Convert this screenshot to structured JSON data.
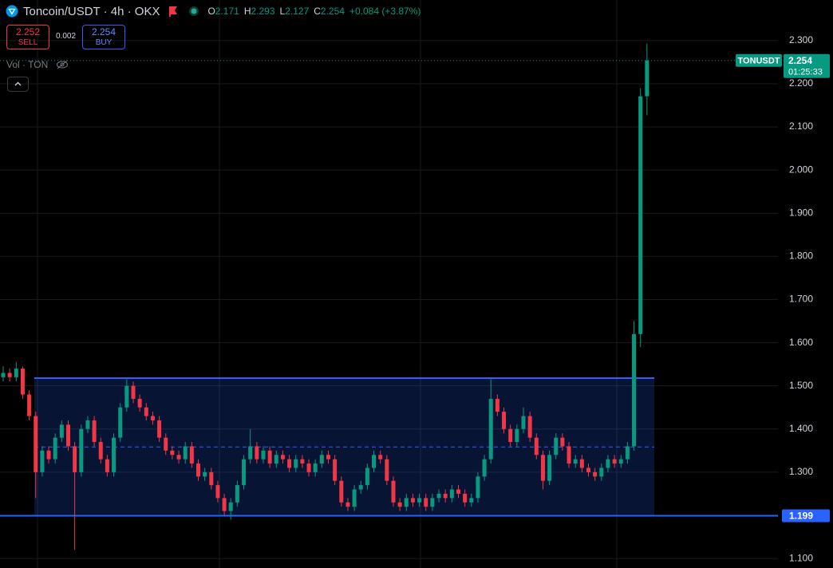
{
  "header": {
    "title": "Toncoin/USDT · 4h · OKX",
    "ohlc": [
      {
        "label": "O",
        "value": 2.171
      },
      {
        "label": "H",
        "value": 2.293
      },
      {
        "label": "L",
        "value": 2.127
      },
      {
        "label": "C",
        "value": 2.254
      }
    ],
    "change": "+0.084 (+3.87%)",
    "sell": {
      "price": 2.252,
      "label": "SELL"
    },
    "spread": 0.002,
    "buy": {
      "price": 2.254,
      "label": "BUY"
    },
    "volume_label": "Vol · TON"
  },
  "chart_data": {
    "type": "candlestick",
    "up_color": "#089981",
    "down_color": "#f23645",
    "grid": true,
    "ylim": [
      1.078,
      2.394
    ],
    "yticks": [
      {
        "value": 1.1,
        "label": "1.100"
      },
      {
        "value": 1.3,
        "label": "1.300"
      },
      {
        "value": 1.4,
        "label": "1.400"
      },
      {
        "value": 1.5,
        "label": "1.500"
      },
      {
        "value": 1.6,
        "label": "1.600"
      },
      {
        "value": 1.7,
        "label": "1.700"
      },
      {
        "value": 1.8,
        "label": "1.800"
      },
      {
        "value": 1.9,
        "label": "1.900"
      },
      {
        "value": 2.0,
        "label": "2.000"
      },
      {
        "value": 2.1,
        "label": "2.100"
      },
      {
        "value": 2.2,
        "label": "2.200"
      },
      {
        "value": 2.3,
        "label": "2.300"
      }
    ],
    "open": [
      1.52,
      1.53,
      1.52,
      1.54,
      1.48,
      1.43,
      1.3,
      1.35,
      1.33,
      1.38,
      1.41,
      1.36,
      1.3,
      1.4,
      1.42,
      1.37,
      1.33,
      1.3,
      1.38,
      1.45,
      1.5,
      1.47,
      1.45,
      1.43,
      1.42,
      1.38,
      1.35,
      1.34,
      1.33,
      1.36,
      1.32,
      1.29,
      1.3,
      1.27,
      1.24,
      1.21,
      1.23,
      1.27,
      1.33,
      1.36,
      1.33,
      1.35,
      1.32,
      1.34,
      1.33,
      1.31,
      1.33,
      1.32,
      1.3,
      1.32,
      1.34,
      1.33,
      1.28,
      1.23,
      1.22,
      1.26,
      1.27,
      1.31,
      1.34,
      1.33,
      1.28,
      1.23,
      1.22,
      1.24,
      1.23,
      1.24,
      1.22,
      1.24,
      1.25,
      1.24,
      1.26,
      1.25,
      1.23,
      1.24,
      1.29,
      1.33,
      1.47,
      1.44,
      1.4,
      1.37,
      1.4,
      1.43,
      1.38,
      1.34,
      1.28,
      1.34,
      1.38,
      1.36,
      1.32,
      1.33,
      1.31,
      1.3,
      1.29,
      1.31,
      1.33,
      1.32,
      1.33,
      1.36,
      1.62,
      2.171
    ],
    "high": [
      1.545,
      1.54,
      1.555,
      1.545,
      1.49,
      1.44,
      1.36,
      1.36,
      1.39,
      1.42,
      1.42,
      1.37,
      1.41,
      1.43,
      1.43,
      1.38,
      1.34,
      1.39,
      1.46,
      1.515,
      1.51,
      1.48,
      1.46,
      1.44,
      1.43,
      1.39,
      1.36,
      1.35,
      1.37,
      1.37,
      1.33,
      1.31,
      1.31,
      1.28,
      1.25,
      1.24,
      1.28,
      1.34,
      1.4,
      1.37,
      1.36,
      1.36,
      1.35,
      1.35,
      1.34,
      1.34,
      1.34,
      1.33,
      1.33,
      1.35,
      1.35,
      1.34,
      1.29,
      1.24,
      1.27,
      1.28,
      1.32,
      1.35,
      1.35,
      1.34,
      1.29,
      1.24,
      1.25,
      1.25,
      1.25,
      1.25,
      1.25,
      1.26,
      1.26,
      1.27,
      1.27,
      1.26,
      1.25,
      1.3,
      1.34,
      1.515,
      1.48,
      1.45,
      1.41,
      1.41,
      1.45,
      1.44,
      1.39,
      1.35,
      1.35,
      1.39,
      1.39,
      1.37,
      1.34,
      1.34,
      1.32,
      1.31,
      1.32,
      1.34,
      1.34,
      1.34,
      1.37,
      1.65,
      2.19,
      2.293
    ],
    "low": [
      1.51,
      1.51,
      1.51,
      1.47,
      1.42,
      1.24,
      1.29,
      1.32,
      1.32,
      1.37,
      1.35,
      1.12,
      1.29,
      1.39,
      1.36,
      1.32,
      1.29,
      1.29,
      1.37,
      1.44,
      1.46,
      1.44,
      1.42,
      1.41,
      1.37,
      1.34,
      1.33,
      1.32,
      1.32,
      1.31,
      1.28,
      1.28,
      1.26,
      1.23,
      1.2,
      1.19,
      1.22,
      1.26,
      1.32,
      1.32,
      1.32,
      1.31,
      1.31,
      1.32,
      1.3,
      1.3,
      1.31,
      1.29,
      1.29,
      1.31,
      1.32,
      1.27,
      1.22,
      1.21,
      1.21,
      1.25,
      1.26,
      1.3,
      1.32,
      1.27,
      1.22,
      1.21,
      1.21,
      1.22,
      1.22,
      1.21,
      1.21,
      1.23,
      1.23,
      1.23,
      1.24,
      1.22,
      1.22,
      1.23,
      1.28,
      1.32,
      1.43,
      1.39,
      1.36,
      1.36,
      1.39,
      1.37,
      1.33,
      1.26,
      1.27,
      1.33,
      1.35,
      1.31,
      1.31,
      1.3,
      1.29,
      1.28,
      1.28,
      1.3,
      1.31,
      1.31,
      1.32,
      1.35,
      1.59,
      2.127
    ],
    "close": [
      1.53,
      1.52,
      1.54,
      1.48,
      1.43,
      1.3,
      1.35,
      1.33,
      1.38,
      1.41,
      1.36,
      1.3,
      1.4,
      1.42,
      1.37,
      1.33,
      1.3,
      1.38,
      1.45,
      1.5,
      1.47,
      1.45,
      1.43,
      1.42,
      1.38,
      1.35,
      1.34,
      1.33,
      1.36,
      1.32,
      1.29,
      1.3,
      1.27,
      1.24,
      1.21,
      1.23,
      1.27,
      1.33,
      1.36,
      1.33,
      1.35,
      1.32,
      1.34,
      1.33,
      1.31,
      1.33,
      1.32,
      1.3,
      1.32,
      1.34,
      1.33,
      1.28,
      1.23,
      1.22,
      1.26,
      1.27,
      1.31,
      1.34,
      1.33,
      1.28,
      1.23,
      1.22,
      1.24,
      1.23,
      1.24,
      1.22,
      1.24,
      1.25,
      1.24,
      1.26,
      1.25,
      1.23,
      1.24,
      1.29,
      1.33,
      1.47,
      1.44,
      1.4,
      1.37,
      1.4,
      1.43,
      1.38,
      1.34,
      1.28,
      1.34,
      1.38,
      1.36,
      1.32,
      1.33,
      1.31,
      1.3,
      1.29,
      1.31,
      1.33,
      1.32,
      1.33,
      1.36,
      1.62,
      2.171,
      2.254
    ],
    "range_box": {
      "top": 1.518,
      "bottom": 1.199,
      "color": "#2962ff"
    },
    "hline": {
      "value": 1.199,
      "color": "#2962ff"
    },
    "last_price": {
      "symbol": "TONUSDT",
      "price": 2.254,
      "countdown": "01:25:33",
      "color": "#089981"
    }
  }
}
